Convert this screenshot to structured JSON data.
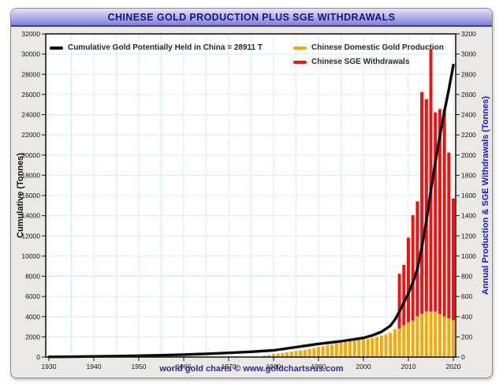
{
  "window": {
    "title": "CHINESE GOLD PRODUCTION PLUS SGE WITHDRAWALS"
  },
  "footer": {
    "credit": "world gold charts © www.goldchartsrus.com"
  },
  "colors": {
    "production_bar": "#F7A80A",
    "sge_bar": "#EC1313",
    "cumulative_line": "#0a0a0a",
    "gridline": "#dcebf4",
    "plot_border": "#1a1a1a",
    "right_axis_label": "#1717dd",
    "title_text": "#15157f",
    "footer_text": "#2a2aa4"
  },
  "chart_data": {
    "type": "bar",
    "subtype": "stacked-bars-with-cumulative-line",
    "title": "CHINESE GOLD PRODUCTION PLUS SGE WITHDRAWALS",
    "grid": "on",
    "legend_position": "top-inside",
    "legend": [
      {
        "label": "Cumulative Gold Potentially Held in China  = 28911 T",
        "color": "#0a0a0a",
        "type": "line"
      },
      {
        "label": "Chinese Domestic Gold Production",
        "color": "#F7A80A",
        "type": "bar"
      },
      {
        "label": "Chinese SGE Withdrawals",
        "color": "#EC1313",
        "type": "bar"
      }
    ],
    "x_axis": {
      "ticks": [
        1930,
        1940,
        1950,
        1960,
        1970,
        1980,
        1990,
        2000,
        2010,
        2020
      ],
      "range": [
        1929,
        2021
      ]
    },
    "left_axis": {
      "label": "Cumulative (Tonnes)",
      "min": 0,
      "max": 32000,
      "tick_step": 2000
    },
    "right_axis": {
      "label": "Annual Production & SGE Withdrawals (Tonnes)",
      "min": 0,
      "max": 3200,
      "tick_step": 200
    },
    "bars": {
      "stacked": true,
      "years": [
        1978,
        1979,
        1980,
        1981,
        1982,
        1983,
        1984,
        1985,
        1986,
        1987,
        1988,
        1989,
        1990,
        1991,
        1992,
        1993,
        1994,
        1995,
        1996,
        1997,
        1998,
        1999,
        2000,
        2001,
        2002,
        2003,
        2004,
        2005,
        2006,
        2007,
        2008,
        2009,
        2010,
        2011,
        2012,
        2013,
        2014,
        2015,
        2016,
        2017,
        2018,
        2019,
        2020
      ],
      "production": [
        15,
        20,
        30,
        35,
        40,
        48,
        53,
        60,
        65,
        72,
        80,
        90,
        100,
        108,
        116,
        124,
        132,
        140,
        148,
        158,
        163,
        170,
        175,
        182,
        190,
        200,
        212,
        224,
        240,
        276,
        282,
        314,
        345,
        362,
        403,
        428,
        452,
        450,
        453,
        426,
        401,
        383,
        365
      ],
      "sge_withdrawals": [
        0,
        0,
        0,
        0,
        0,
        0,
        0,
        0,
        0,
        0,
        0,
        0,
        0,
        0,
        0,
        0,
        0,
        0,
        0,
        0,
        0,
        0,
        0,
        0,
        0,
        0,
        0,
        0,
        0,
        0,
        543,
        600,
        837,
        1043,
        1139,
        2197,
        2102,
        2596,
        1970,
        2030,
        2055,
        1642,
        1205
      ]
    },
    "line_series": {
      "name": "Cumulative Gold Potentially Held in China",
      "final_value_label": "= 28911 T",
      "final_value": 28911,
      "axis": "left",
      "points": [
        [
          1930,
          15
        ],
        [
          1935,
          35
        ],
        [
          1940,
          60
        ],
        [
          1945,
          90
        ],
        [
          1950,
          130
        ],
        [
          1955,
          180
        ],
        [
          1960,
          240
        ],
        [
          1965,
          320
        ],
        [
          1970,
          410
        ],
        [
          1975,
          520
        ],
        [
          1980,
          660
        ],
        [
          1985,
          980
        ],
        [
          1990,
          1300
        ],
        [
          1995,
          1560
        ],
        [
          2000,
          1900
        ],
        [
          2002,
          2150
        ],
        [
          2004,
          2500
        ],
        [
          2006,
          3100
        ],
        [
          2007,
          3700
        ],
        [
          2008,
          4500
        ],
        [
          2009,
          5400
        ],
        [
          2010,
          6300
        ],
        [
          2011,
          7400
        ],
        [
          2012,
          8700
        ],
        [
          2013,
          10900
        ],
        [
          2014,
          13500
        ],
        [
          2015,
          16500
        ],
        [
          2016,
          19300
        ],
        [
          2017,
          21900
        ],
        [
          2018,
          24300
        ],
        [
          2019,
          26500
        ],
        [
          2020,
          28911
        ]
      ]
    }
  }
}
